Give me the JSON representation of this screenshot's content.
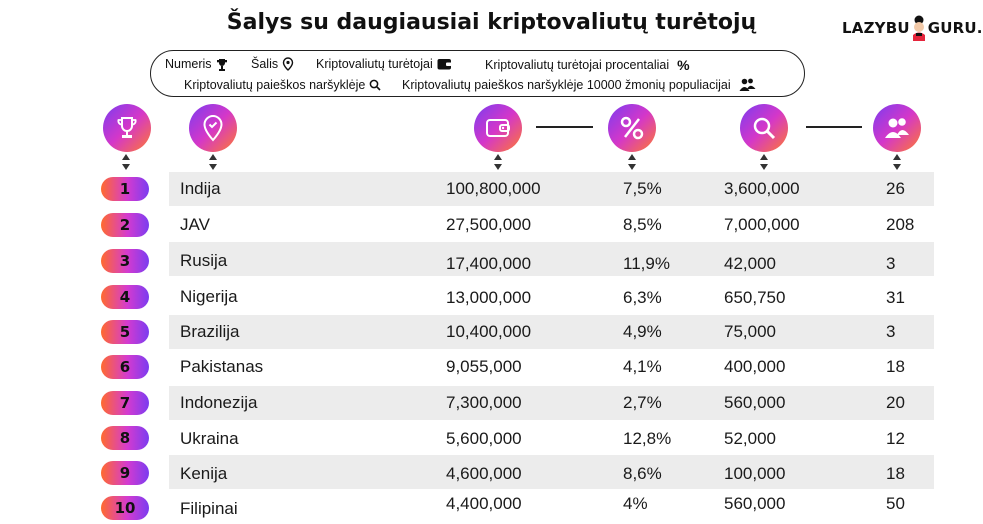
{
  "title": "Šalys su daugiausiai kriptovaliutų turėtojų",
  "logo": {
    "left": "LAZYBU",
    "right": "GURU.LT"
  },
  "legend": {
    "rank": "Numeris",
    "country": "Šalis",
    "holders": "Kriptovaliutų turėtojai",
    "percent": "Kriptovaliutų turėtojai procentaliai",
    "percent_symbol": "%",
    "searches": "Kriptovaliutų paieškos naršyklėje",
    "searches_per": "Kriptovaliutų paieškos naršyklėje 10000 žmonių populiacijai"
  },
  "colors": {
    "gradient_start": "#7b3cf0",
    "gradient_mid": "#d437c9",
    "gradient_end": "#ff7a2f",
    "row_stripe": "#ececec"
  },
  "chart_data": {
    "type": "table",
    "columns": [
      "rank",
      "country",
      "holders",
      "percent",
      "searches",
      "searches_per_10000"
    ],
    "rows": [
      {
        "rank": "1",
        "country": "Indija",
        "holders": "100,800,000",
        "percent": "7,5%",
        "searches": "3,600,000",
        "per": "26"
      },
      {
        "rank": "2",
        "country": "JAV",
        "holders": "27,500,000",
        "percent": "8,5%",
        "searches": "7,000,000",
        "per": "208"
      },
      {
        "rank": "3",
        "country": "Rusija",
        "holders": "17,400,000",
        "percent": "11,9%",
        "searches": "42,000",
        "per": "3"
      },
      {
        "rank": "4",
        "country": "Nigerija",
        "holders": "13,000,000",
        "percent": "6,3%",
        "searches": "650,750",
        "per": "31"
      },
      {
        "rank": "5",
        "country": "Brazilija",
        "holders": "10,400,000",
        "percent": "4,9%",
        "searches": "75,000",
        "per": "3"
      },
      {
        "rank": "6",
        "country": "Pakistanas",
        "holders": "9,055,000",
        "percent": "4,1%",
        "searches": "400,000",
        "per": "18"
      },
      {
        "rank": "7",
        "country": "Indonezija",
        "holders": "7,300,000",
        "percent": "2,7%",
        "searches": "560,000",
        "per": "20"
      },
      {
        "rank": "8",
        "country": "Ukraina",
        "holders": "5,600,000",
        "percent": "12,8%",
        "searches": "52,000",
        "per": "12"
      },
      {
        "rank": "9",
        "country": "Kenija",
        "holders": "4,600,000",
        "percent": "8,6%",
        "searches": "100,000",
        "per": "18"
      },
      {
        "rank": "10",
        "country": "Filipinai",
        "holders": "4,400,000",
        "percent": "4%",
        "searches": "560,000",
        "per": "50"
      }
    ]
  }
}
